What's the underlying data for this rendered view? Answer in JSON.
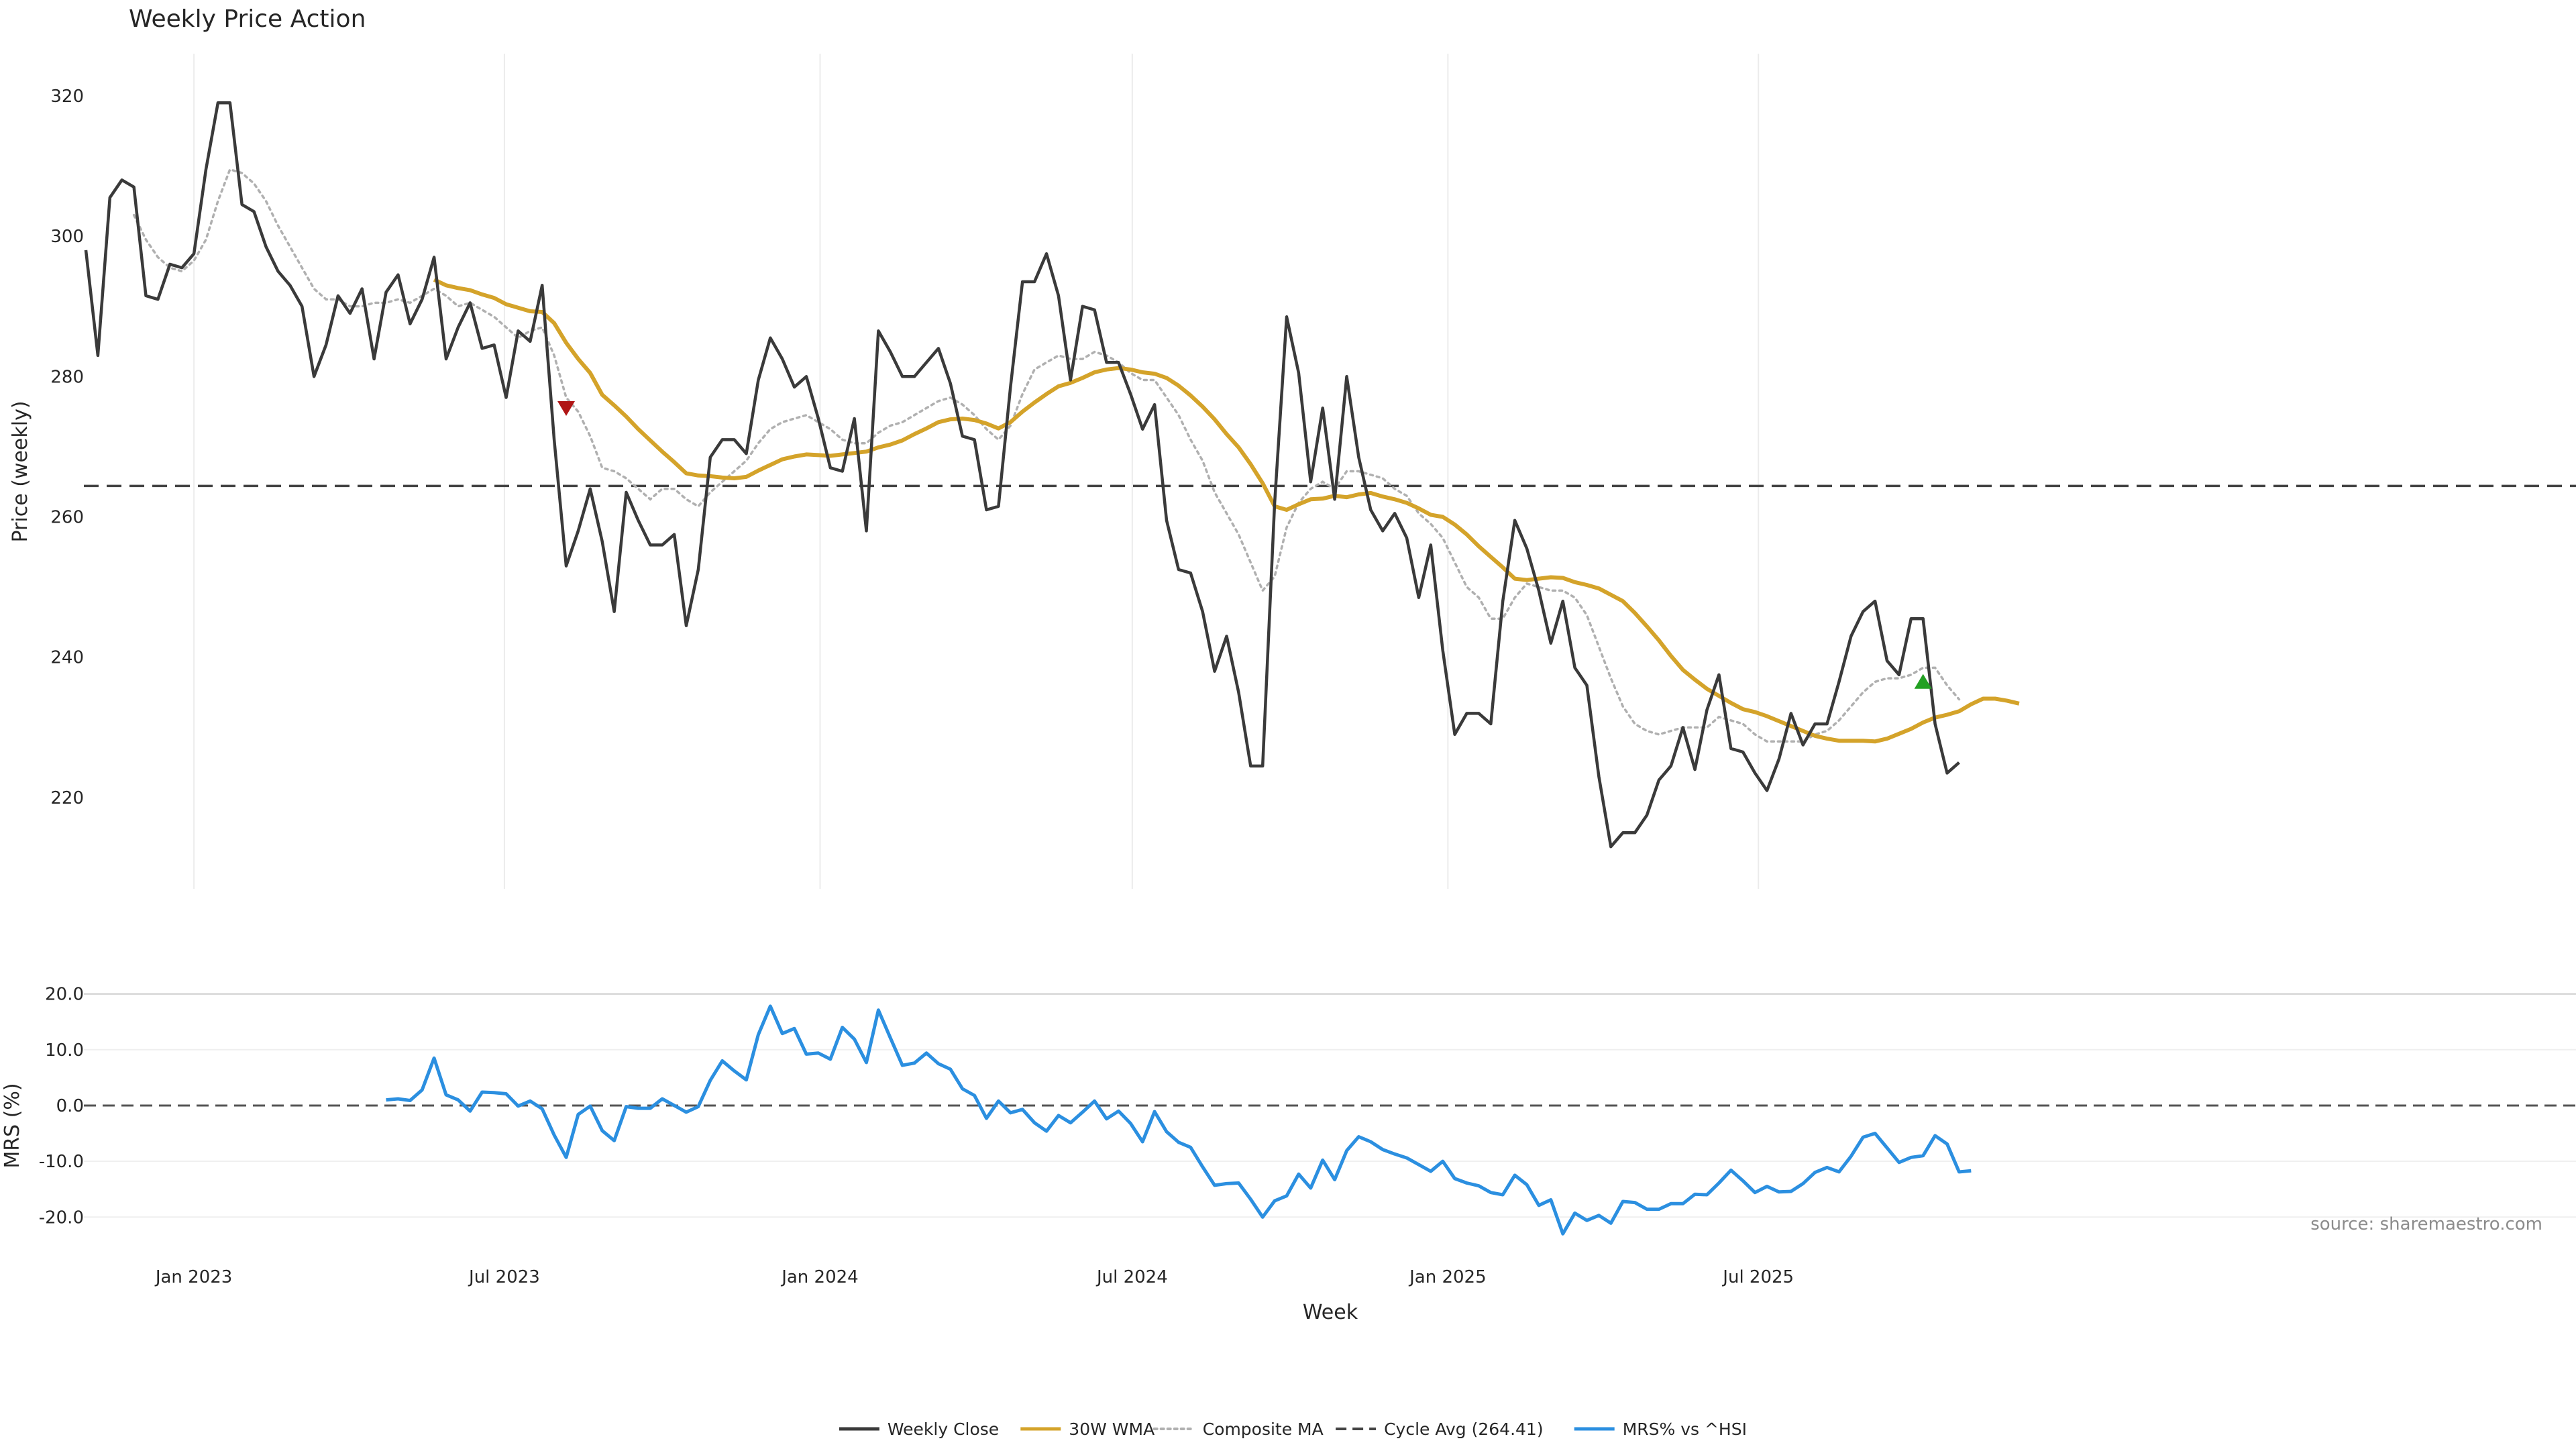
{
  "chart_data": [
    {
      "type": "line",
      "title": "Weekly Price Action",
      "xlabel": "",
      "ylabel": "Price (weekly)",
      "x_ticks": [
        "Jan 2023",
        "Jul 2023",
        "Jan 2024",
        "Jul 2024",
        "Jan 2025",
        "Jul 2025"
      ],
      "y_ticks": [
        220,
        240,
        260,
        280,
        300,
        320
      ],
      "ylim": [
        207,
        326
      ],
      "grid": "vertical",
      "colors": {
        "weekly_close": "#3a3a3a",
        "wma_30w": "#d4a32a",
        "composite_ma": "#b0b0b0",
        "cycle_avg": "#444444",
        "buy_signal": "#22a022",
        "sell_signal": "#b01515"
      },
      "x_start": "2022-10-30",
      "week_step_days": 7,
      "series": [
        {
          "name": "Weekly Close",
          "values": [
            298.0,
            283.0,
            305.5,
            308.0,
            307.0,
            291.5,
            291.0,
            296.0,
            295.5,
            297.5,
            309.5,
            319.0,
            319.0,
            304.5,
            303.5,
            298.5,
            295.0,
            293.0,
            290.0,
            280.0,
            284.5,
            291.5,
            289.0,
            292.5,
            282.5,
            292.0,
            294.5,
            287.5,
            291.0,
            297.0,
            282.5,
            287.0,
            290.5,
            284.0,
            284.5,
            277.0,
            286.5,
            285.0,
            293.0,
            271.0,
            253.0,
            258.0,
            264.0,
            256.5,
            246.5,
            263.5,
            259.5,
            256.0,
            256.0,
            257.5,
            244.5,
            252.5,
            268.5,
            271.0,
            271.0,
            269.0,
            279.5,
            285.5,
            282.5,
            278.5,
            280.0,
            274.0,
            267.0,
            266.5,
            274.0,
            258.0,
            286.5,
            283.5,
            280.0,
            280.0,
            282.0,
            284.0,
            279.0,
            271.5,
            271.0,
            261.0,
            261.5,
            278.5,
            293.5,
            293.5,
            297.5,
            291.5,
            279.5,
            290.0,
            289.5,
            282.0,
            282.0,
            277.5,
            272.5,
            276.0,
            259.5,
            252.5,
            252.0,
            246.5,
            238.0,
            243.0,
            235.0,
            224.5,
            224.5,
            262.0,
            288.5,
            280.5,
            265.0,
            275.5,
            262.5,
            280.0,
            268.5,
            261.0,
            258.0,
            260.5,
            257.0,
            248.5,
            256.0,
            241.0,
            229.0,
            232.0,
            232.0,
            230.5,
            248.0,
            259.5,
            255.5,
            249.5,
            242.0,
            248.0,
            238.5,
            236.0,
            223.0,
            213.0,
            215.0,
            215.0,
            217.5,
            222.5,
            224.5,
            230.0,
            224.0,
            232.5,
            237.5,
            227.0,
            226.5,
            223.5,
            221.0,
            225.5,
            232.0,
            227.5,
            230.5,
            230.5,
            236.5,
            243.0,
            246.5,
            248.0,
            239.5,
            237.5,
            245.5,
            245.5,
            230.5,
            223.5,
            225.0
          ]
        },
        {
          "name": "30W WMA",
          "values": [
            null,
            null,
            null,
            null,
            null,
            null,
            null,
            null,
            null,
            null,
            null,
            null,
            null,
            null,
            null,
            null,
            null,
            null,
            null,
            null,
            null,
            null,
            null,
            null,
            null,
            null,
            null,
            null,
            null,
            293.8,
            293.0,
            292.6,
            292.3,
            291.7,
            291.2,
            290.3,
            289.8,
            289.3,
            289.2,
            287.6,
            284.8,
            282.5,
            280.5,
            277.4,
            275.9,
            274.3,
            272.5,
            270.9,
            269.3,
            267.8,
            266.2,
            265.9,
            265.8,
            265.6,
            265.5,
            265.7,
            266.6,
            267.4,
            268.2,
            268.6,
            268.9,
            268.8,
            268.7,
            268.9,
            269.1,
            269.3,
            269.9,
            270.3,
            270.9,
            271.8,
            272.6,
            273.5,
            273.9,
            274.0,
            273.8,
            273.3,
            272.6,
            273.5,
            275.0,
            276.3,
            277.5,
            278.6,
            279.1,
            279.8,
            280.6,
            281.0,
            281.2,
            281.0,
            280.6,
            280.4,
            279.8,
            278.7,
            277.3,
            275.7,
            273.9,
            271.8,
            269.9,
            267.5,
            264.8,
            261.5,
            261.0,
            261.8,
            262.5,
            262.6,
            263.0,
            262.8,
            263.2,
            263.4,
            262.9,
            262.5,
            262.0,
            261.2,
            260.3,
            260.0,
            258.9,
            257.5,
            255.8,
            254.3,
            252.8,
            251.2,
            251.0,
            251.2,
            251.4,
            251.3,
            250.7,
            250.3,
            249.8,
            248.9,
            248.0,
            246.3,
            244.4,
            242.4,
            240.2,
            238.2,
            236.8,
            235.5,
            234.5,
            233.5,
            232.6,
            232.2,
            231.6,
            230.9,
            230.2,
            229.5,
            228.8,
            228.4,
            228.1,
            228.1,
            228.1,
            228.0,
            228.4,
            229.1,
            229.8,
            230.7,
            231.4,
            231.8,
            232.3,
            233.3,
            234.1,
            234.1,
            233.8,
            233.4
          ]
        },
        {
          "name": "Composite MA",
          "values": [
            null,
            null,
            null,
            null,
            303.0,
            299.5,
            297.0,
            295.5,
            295.0,
            296.5,
            299.5,
            305.0,
            309.5,
            309.0,
            307.5,
            305.0,
            301.5,
            298.5,
            295.5,
            292.5,
            291.0,
            291.0,
            290.0,
            290.0,
            290.5,
            290.5,
            291.0,
            290.5,
            291.5,
            292.5,
            291.5,
            290.0,
            290.5,
            289.5,
            288.5,
            287.0,
            285.5,
            286.5,
            287.0,
            283.0,
            277.0,
            275.0,
            271.5,
            267.0,
            266.5,
            265.5,
            264.0,
            262.5,
            264.0,
            264.0,
            262.5,
            261.5,
            263.5,
            265.0,
            266.5,
            268.0,
            270.5,
            272.5,
            273.5,
            274.0,
            274.5,
            273.5,
            272.5,
            271.0,
            270.5,
            270.5,
            272.0,
            273.0,
            273.5,
            274.5,
            275.5,
            276.5,
            277.0,
            276.0,
            274.5,
            272.5,
            271.0,
            273.0,
            277.5,
            281.0,
            282.0,
            283.0,
            282.5,
            282.5,
            283.5,
            283.0,
            282.0,
            280.5,
            279.5,
            279.5,
            277.0,
            274.5,
            271.0,
            268.0,
            263.5,
            260.5,
            257.5,
            253.5,
            249.5,
            251.5,
            258.5,
            262.0,
            264.0,
            265.0,
            264.0,
            266.5,
            266.5,
            266.0,
            265.5,
            264.0,
            263.0,
            260.5,
            259.0,
            257.0,
            253.5,
            250.0,
            248.5,
            245.5,
            245.5,
            248.5,
            250.5,
            250.0,
            249.5,
            249.5,
            248.5,
            246.0,
            241.5,
            237.0,
            233.0,
            230.5,
            229.5,
            229.0,
            229.5,
            230.0,
            230.0,
            230.0,
            231.5,
            231.0,
            230.5,
            229.0,
            228.0,
            228.0,
            228.0,
            228.0,
            229.0,
            229.5,
            231.0,
            233.0,
            235.0,
            236.5,
            237.0,
            237.0,
            237.5,
            238.5,
            238.5,
            236.0,
            234.0
          ]
        },
        {
          "name": "Cycle Avg (264.41)",
          "constant": 264.41
        }
      ],
      "markers": [
        {
          "type": "sell",
          "shape": "triangle-down",
          "week_index": 40,
          "y": 275.5
        },
        {
          "type": "buy",
          "shape": "triangle-up",
          "week_index": 153,
          "y": 236.5
        }
      ]
    },
    {
      "type": "line",
      "title": "",
      "xlabel": "Week",
      "ylabel": "MRS (%)",
      "x_ticks": [
        "Jan 2023",
        "Jul 2023",
        "Jan 2024",
        "Jul 2024",
        "Jan 2025",
        "Jul 2025"
      ],
      "y_ticks": [
        "20.0",
        "10.0",
        "0.0",
        "-10.0",
        "-20.0"
      ],
      "ylim": [
        -25.5,
        22
      ],
      "zero_line": 0.0,
      "colors": {
        "mrs": "#2b8fe0",
        "zero_line": "#555555"
      },
      "x_start": "2022-10-30",
      "week_step_days": 7,
      "series": [
        {
          "name": "MRS% vs ^HSI",
          "values": [
            null,
            null,
            null,
            null,
            null,
            null,
            null,
            null,
            null,
            null,
            null,
            null,
            null,
            null,
            null,
            null,
            null,
            null,
            null,
            null,
            null,
            null,
            null,
            null,
            null,
            1.0,
            1.2,
            0.9,
            2.8,
            8.5,
            1.9,
            1.0,
            -1.0,
            2.4,
            2.3,
            2.1,
            -0.1,
            0.8,
            -0.6,
            -5.3,
            -9.3,
            -1.6,
            -0.1,
            -4.5,
            -6.3,
            -0.2,
            -0.5,
            -0.5,
            1.2,
            0.0,
            -1.2,
            -0.2,
            4.5,
            8.0,
            6.2,
            4.6,
            12.7,
            17.8,
            12.9,
            13.8,
            9.2,
            9.4,
            8.3,
            14.0,
            11.9,
            7.7,
            17.1,
            12.1,
            7.2,
            7.6,
            9.4,
            7.5,
            6.5,
            3.0,
            1.8,
            -2.3,
            0.8,
            -1.3,
            -0.7,
            -3.1,
            -4.6,
            -1.8,
            -3.1,
            -1.2,
            0.8,
            -2.4,
            -1.0,
            -3.2,
            -6.5,
            -1.1,
            -4.7,
            -6.6,
            -7.5,
            -11.0,
            -14.3,
            -14.0,
            -13.9,
            -16.8,
            -20.0,
            -17.1,
            -16.2,
            -12.3,
            -14.8,
            -9.8,
            -13.3,
            -8.1,
            -5.6,
            -6.5,
            -7.9,
            -8.7,
            -9.4,
            -10.6,
            -11.8,
            -10.0,
            -13.1,
            -13.9,
            -14.4,
            -15.6,
            -16.0,
            -12.5,
            -14.2,
            -17.9,
            -16.9,
            -23.0,
            -19.3,
            -20.6,
            -19.7,
            -21.1,
            -17.2,
            -17.4,
            -18.6,
            -18.6,
            -17.6,
            -17.6,
            -15.9,
            -16.0,
            -13.9,
            -11.6,
            -13.5,
            -15.6,
            -14.5,
            -15.5,
            -15.4,
            -14.0,
            -12.0,
            -11.1,
            -11.9,
            -9.1,
            -5.7,
            -5.0,
            -7.6,
            -10.2,
            -9.3,
            -9.0,
            -5.4,
            -6.9,
            -11.9,
            -11.7
          ]
        }
      ]
    }
  ],
  "annotations": {
    "source": "source: sharemaestro.com"
  },
  "legend": {
    "placement": "bottom-center",
    "items": [
      {
        "label": "Weekly Close",
        "style": "solid",
        "color": "#3a3a3a"
      },
      {
        "label": "30W WMA",
        "style": "solid",
        "color": "#d4a32a"
      },
      {
        "label": "Composite MA",
        "style": "dotted",
        "color": "#b0b0b0"
      },
      {
        "label": "Cycle Avg (264.41)",
        "style": "dashed",
        "color": "#444444"
      },
      {
        "label": "MRS% vs ^HSI",
        "style": "solid",
        "color": "#2b8fe0"
      }
    ]
  }
}
